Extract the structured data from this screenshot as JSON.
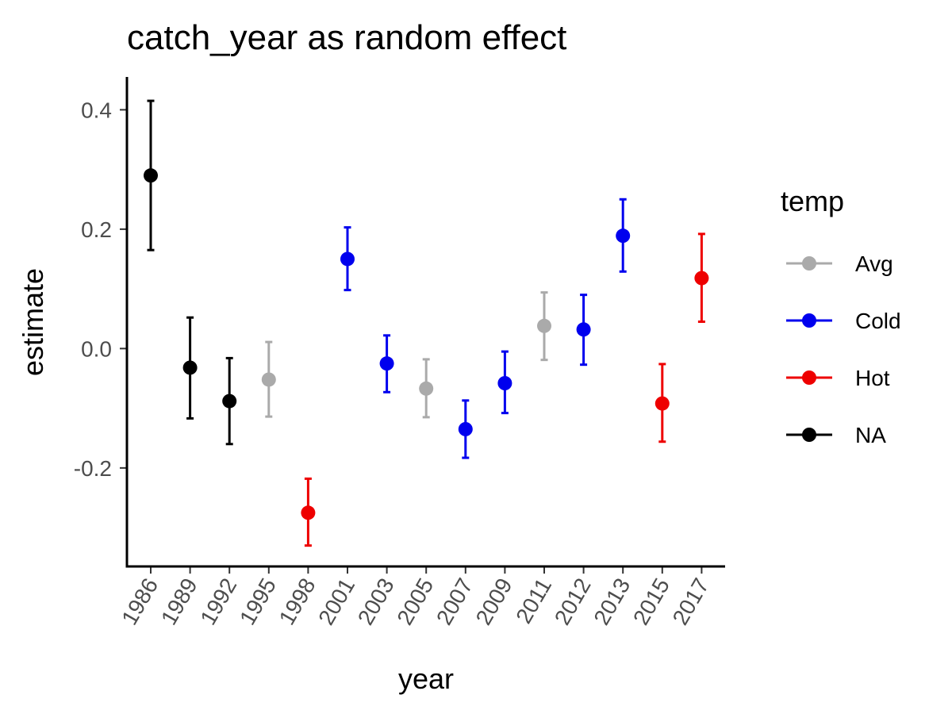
{
  "chart_data": {
    "type": "scatter",
    "title": "catch_year as random effect",
    "xlabel": "year",
    "ylabel": "estimate",
    "ylim": [
      -0.365,
      0.455
    ],
    "yticks": [
      "0.4",
      "0.2",
      "0.0",
      "-0.2"
    ],
    "ytick_values": [
      0.4,
      0.2,
      0.0,
      -0.2
    ],
    "categories": [
      "1986",
      "1989",
      "1992",
      "1995",
      "1998",
      "2001",
      "2003",
      "2005",
      "2007",
      "2009",
      "2011",
      "2012",
      "2013",
      "2015",
      "2017"
    ],
    "legend": {
      "title": "temp",
      "position": "right",
      "items": [
        {
          "label": "Avg",
          "color": "#aaaaaa"
        },
        {
          "label": "Cold",
          "color": "#0000ee"
        },
        {
          "label": "Hot",
          "color": "#ee0000"
        },
        {
          "label": "NA",
          "color": "#000000"
        }
      ]
    },
    "points": [
      {
        "year": "1986",
        "temp": "NA",
        "estimate": 0.29,
        "lower": 0.165,
        "upper": 0.415
      },
      {
        "year": "1989",
        "temp": "NA",
        "estimate": -0.032,
        "lower": -0.117,
        "upper": 0.052
      },
      {
        "year": "1992",
        "temp": "NA",
        "estimate": -0.088,
        "lower": -0.16,
        "upper": -0.016
      },
      {
        "year": "1995",
        "temp": "Avg",
        "estimate": -0.052,
        "lower": -0.114,
        "upper": 0.011
      },
      {
        "year": "1998",
        "temp": "Hot",
        "estimate": -0.275,
        "lower": -0.33,
        "upper": -0.218
      },
      {
        "year": "2001",
        "temp": "Cold",
        "estimate": 0.15,
        "lower": 0.098,
        "upper": 0.203
      },
      {
        "year": "2003",
        "temp": "Cold",
        "estimate": -0.025,
        "lower": -0.073,
        "upper": 0.022
      },
      {
        "year": "2005",
        "temp": "Avg",
        "estimate": -0.067,
        "lower": -0.115,
        "upper": -0.018
      },
      {
        "year": "2007",
        "temp": "Cold",
        "estimate": -0.135,
        "lower": -0.183,
        "upper": -0.087
      },
      {
        "year": "2009",
        "temp": "Cold",
        "estimate": -0.058,
        "lower": -0.108,
        "upper": -0.005
      },
      {
        "year": "2011",
        "temp": "Avg",
        "estimate": 0.038,
        "lower": -0.019,
        "upper": 0.094
      },
      {
        "year": "2012",
        "temp": "Cold",
        "estimate": 0.032,
        "lower": -0.027,
        "upper": 0.09
      },
      {
        "year": "2013",
        "temp": "Cold",
        "estimate": 0.189,
        "lower": 0.129,
        "upper": 0.25
      },
      {
        "year": "2015",
        "temp": "Hot",
        "estimate": -0.092,
        "lower": -0.156,
        "upper": -0.026
      },
      {
        "year": "2017",
        "temp": "Hot",
        "estimate": 0.118,
        "lower": 0.045,
        "upper": 0.192
      }
    ]
  }
}
